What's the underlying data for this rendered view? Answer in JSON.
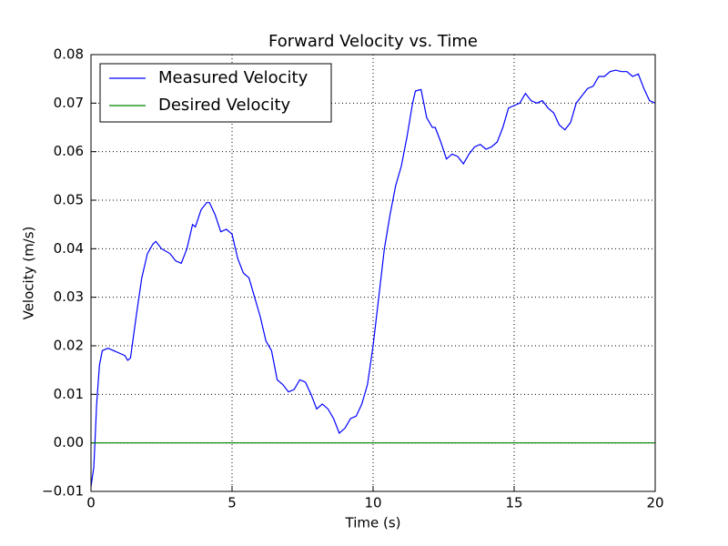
{
  "chart_data": {
    "type": "line",
    "title": "Forward Velocity vs. Time",
    "x_label": "Time (s)",
    "y_label": "Velocity (m/s)",
    "xlim": [
      0,
      20
    ],
    "xticks": [
      0,
      5,
      10,
      15,
      20
    ],
    "ylim": [
      -0.01,
      0.08
    ],
    "yticks": [
      {
        "value": -0.01,
        "label": "−0.01"
      },
      {
        "value": 0,
        "label": "0.00"
      },
      0.01,
      0.02,
      0.03,
      0.04,
      0.05,
      0.06,
      0.07,
      0.08
    ],
    "grid": true,
    "legend": "upper-left",
    "series": [
      {
        "name": "Measured Velocity",
        "color": "#0000ff",
        "x": [
          0,
          0.1,
          0.2,
          0.3,
          0.4,
          0.6,
          0.8,
          1.0,
          1.2,
          1.3,
          1.4,
          1.6,
          1.8,
          2.0,
          2.2,
          2.3,
          2.5,
          2.8,
          3.0,
          3.2,
          3.4,
          3.6,
          3.7,
          3.9,
          4.1,
          4.2,
          4.4,
          4.6,
          4.8,
          5.0,
          5.2,
          5.4,
          5.6,
          5.8,
          6.0,
          6.2,
          6.4,
          6.6,
          6.8,
          7.0,
          7.2,
          7.4,
          7.6,
          7.8,
          8.0,
          8.2,
          8.4,
          8.6,
          8.8,
          9.0,
          9.2,
          9.4,
          9.6,
          9.8,
          10.0,
          10.2,
          10.4,
          10.6,
          10.8,
          11.0,
          11.2,
          11.4,
          11.5,
          11.7,
          11.9,
          12.1,
          12.2,
          12.4,
          12.6,
          12.8,
          13.0,
          13.2,
          13.4,
          13.6,
          13.8,
          14.0,
          14.2,
          14.4,
          14.6,
          14.8,
          15.0,
          15.2,
          15.4,
          15.6,
          15.8,
          16.0,
          16.2,
          16.4,
          16.6,
          16.8,
          17.0,
          17.2,
          17.4,
          17.6,
          17.8,
          18.0,
          18.2,
          18.4,
          18.6,
          18.8,
          19.0,
          19.2,
          19.4,
          19.6,
          19.8,
          20.0
        ],
        "values": [
          -0.009,
          -0.005,
          0.008,
          0.016,
          0.019,
          0.0195,
          0.019,
          0.0185,
          0.018,
          0.017,
          0.0175,
          0.026,
          0.034,
          0.039,
          0.041,
          0.0415,
          0.04,
          0.039,
          0.0375,
          0.037,
          0.04,
          0.045,
          0.0445,
          0.048,
          0.0495,
          0.0495,
          0.047,
          0.0435,
          0.044,
          0.043,
          0.038,
          0.035,
          0.034,
          0.03,
          0.026,
          0.021,
          0.019,
          0.013,
          0.012,
          0.0105,
          0.011,
          0.013,
          0.0125,
          0.01,
          0.007,
          0.008,
          0.007,
          0.005,
          0.002,
          0.003,
          0.005,
          0.0055,
          0.008,
          0.012,
          0.02,
          0.03,
          0.04,
          0.047,
          0.053,
          0.057,
          0.063,
          0.07,
          0.0725,
          0.0728,
          0.067,
          0.065,
          0.065,
          0.062,
          0.0585,
          0.0595,
          0.059,
          0.0575,
          0.0595,
          0.061,
          0.0615,
          0.0605,
          0.061,
          0.062,
          0.065,
          0.069,
          0.0695,
          0.07,
          0.072,
          0.0705,
          0.07,
          0.0705,
          0.069,
          0.068,
          0.0655,
          0.0645,
          0.066,
          0.07,
          0.0715,
          0.073,
          0.0735,
          0.0755,
          0.0755,
          0.0765,
          0.0768,
          0.0765,
          0.0765,
          0.0755,
          0.076,
          0.073,
          0.0705,
          0.07
        ]
      },
      {
        "name": "Desired Velocity",
        "color": "#008000",
        "x": [
          0,
          20
        ],
        "values": [
          0,
          0
        ]
      }
    ]
  }
}
